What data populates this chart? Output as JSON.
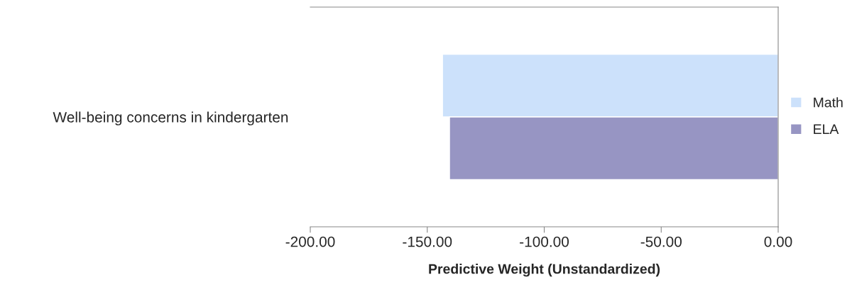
{
  "chart_data": {
    "type": "bar",
    "orientation": "horizontal",
    "categories": [
      "Well-being concerns in kindergarten"
    ],
    "series": [
      {
        "name": "Math",
        "color": "#cce1fb",
        "values": [
          -143.5
        ]
      },
      {
        "name": "ELA",
        "color": "#9795c3",
        "values": [
          -140.5
        ]
      }
    ],
    "xlim": [
      -200,
      0
    ],
    "xticks": [
      {
        "value": -200,
        "label": "-200.00"
      },
      {
        "value": -150,
        "label": "-150.00"
      },
      {
        "value": -100,
        "label": "-100.00"
      },
      {
        "value": -50,
        "label": "-50.00"
      },
      {
        "value": 0,
        "label": "0.00"
      }
    ],
    "xlabel": "Predictive Weight (Unstandardized)",
    "legend": "right",
    "grid": false
  }
}
